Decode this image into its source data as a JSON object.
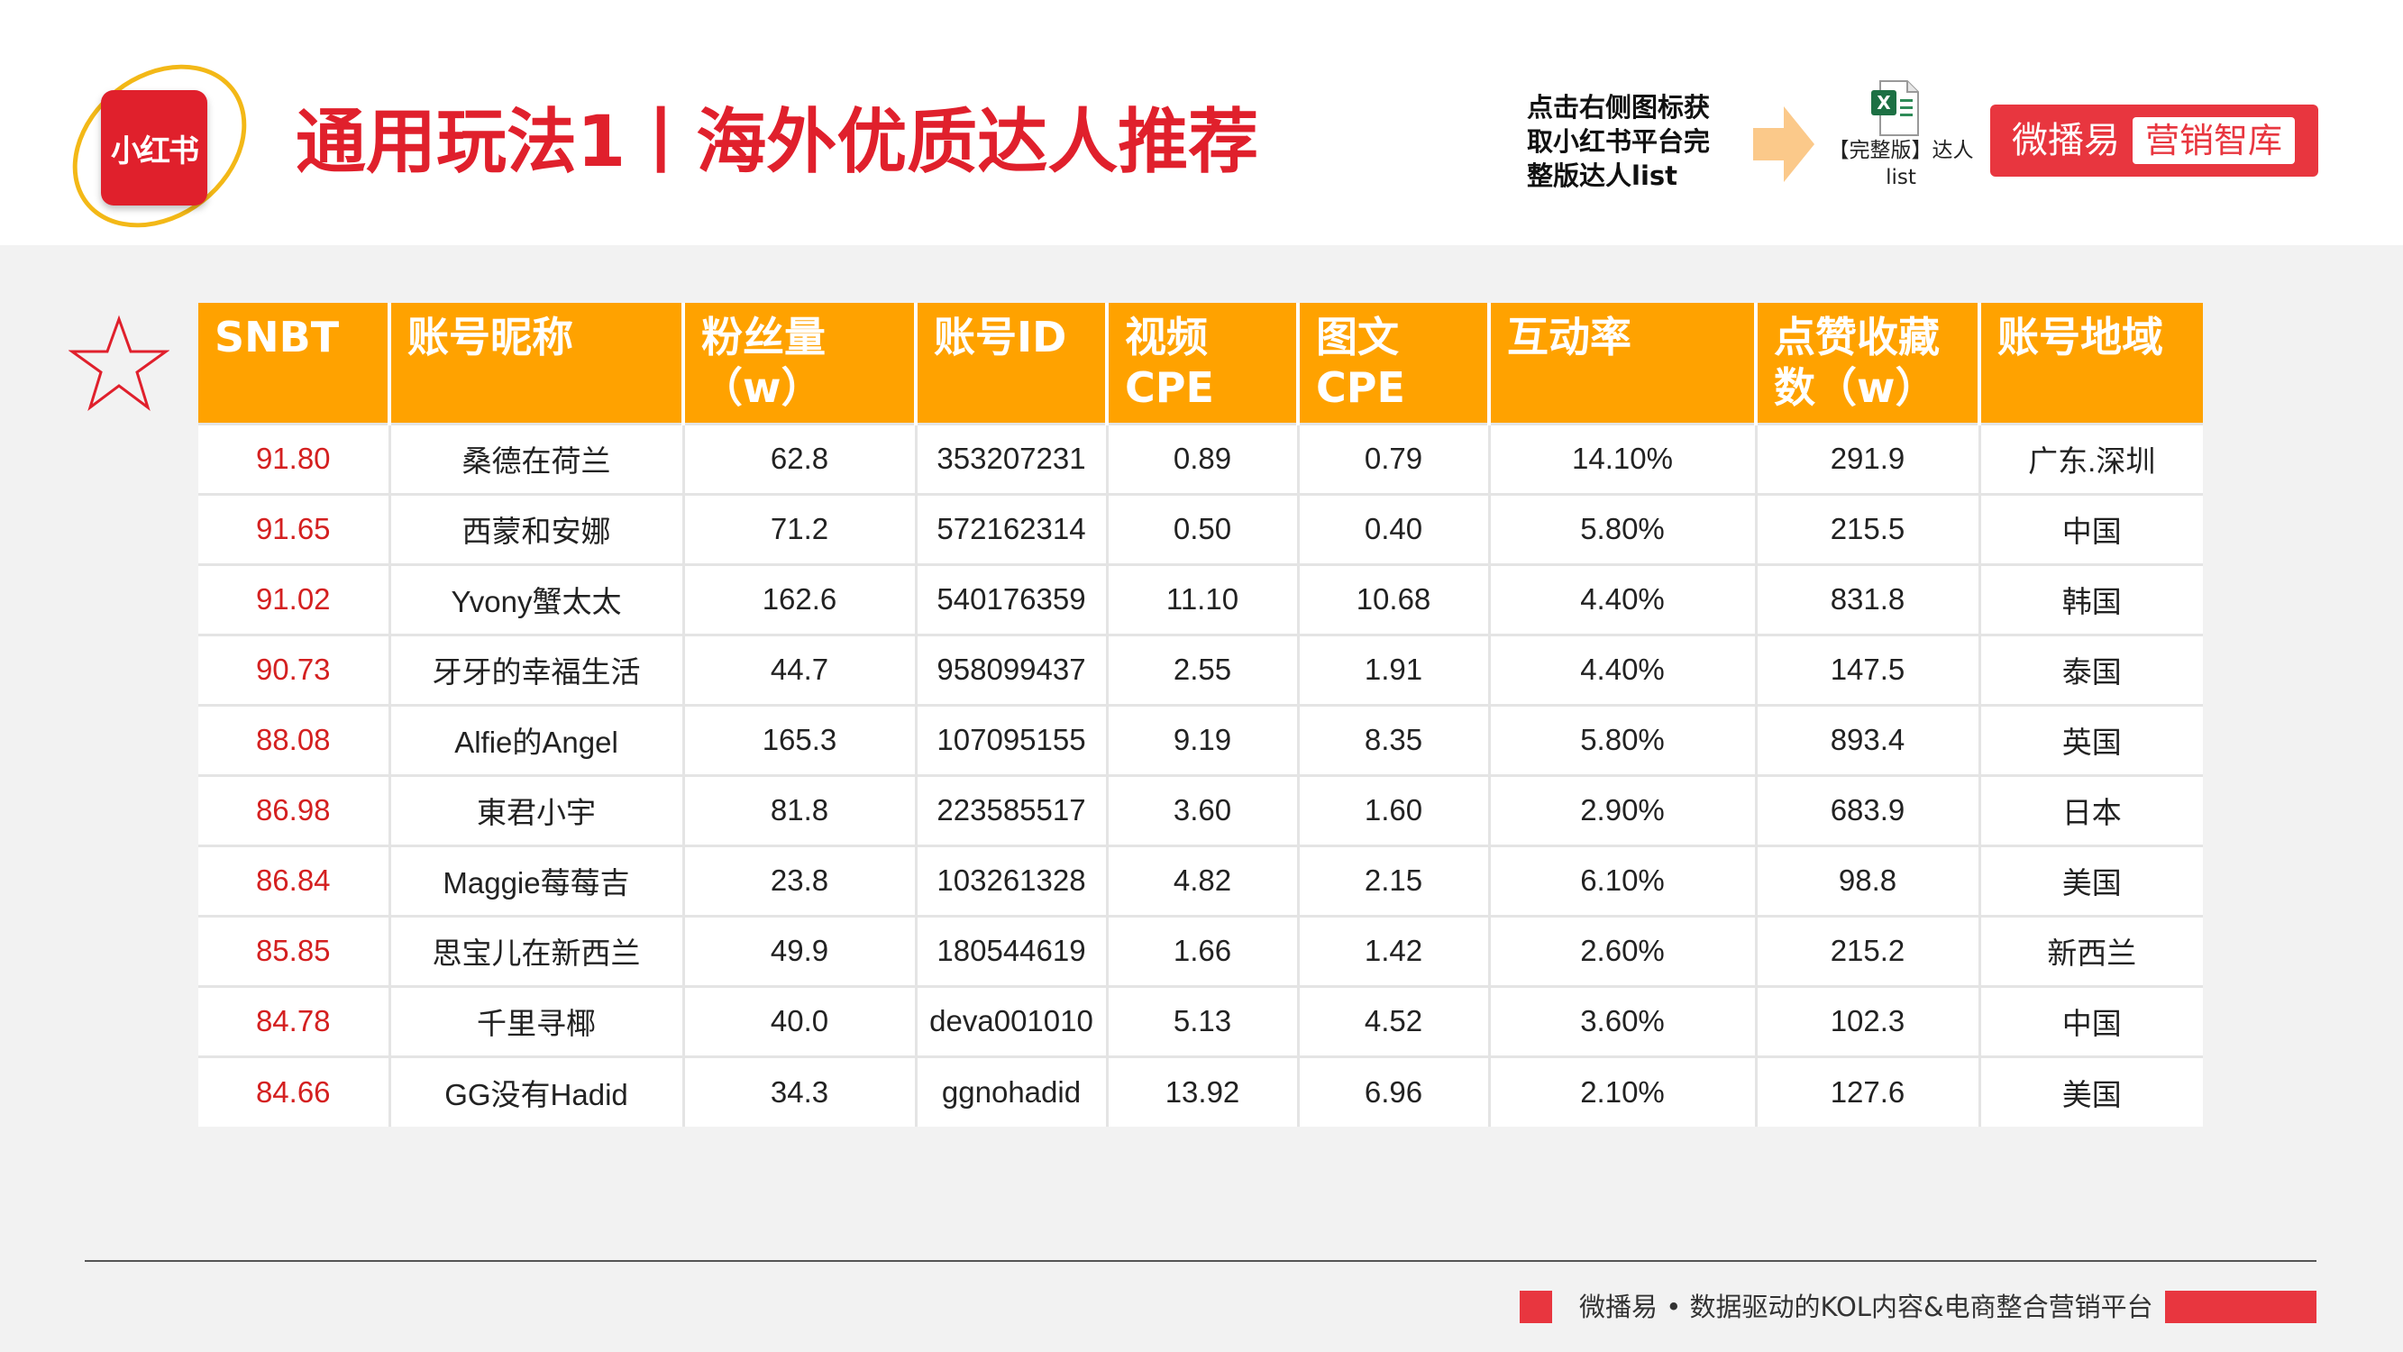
{
  "header": {
    "logo_text": "小红书",
    "title": "通用玩法1丨海外优质达人推荐",
    "hint": "点击右侧图标获取小红书平台完整版达人list",
    "excel_label": "【完整版】达人list",
    "brand_name": "微播易",
    "brand_tag": "营销智库"
  },
  "table": {
    "columns": [
      "SNBT",
      "账号昵称",
      "粉丝量（w）",
      "账号ID",
      "视频CPE",
      "图文CPE",
      "互动率",
      "点赞收藏数（w）",
      "账号地域"
    ],
    "rows": [
      [
        "91.80",
        "桑德在荷兰",
        "62.8",
        "353207231",
        "0.89",
        "0.79",
        "14.10%",
        "291.9",
        "广东.深圳"
      ],
      [
        "91.65",
        "西蒙和安娜",
        "71.2",
        "572162314",
        "0.50",
        "0.40",
        "5.80%",
        "215.5",
        "中国"
      ],
      [
        "91.02",
        "Yvony蟹太太",
        "162.6",
        "540176359",
        "11.10",
        "10.68",
        "4.40%",
        "831.8",
        "韩国"
      ],
      [
        "90.73",
        "牙牙的幸福生活",
        "44.7",
        "958099437",
        "2.55",
        "1.91",
        "4.40%",
        "147.5",
        "泰国"
      ],
      [
        "88.08",
        "Alfie的Angel",
        "165.3",
        "107095155",
        "9.19",
        "8.35",
        "5.80%",
        "893.4",
        "英国"
      ],
      [
        "86.98",
        "東君小宇",
        "81.8",
        "223585517",
        "3.60",
        "1.60",
        "2.90%",
        "683.9",
        "日本"
      ],
      [
        "86.84",
        "Maggie莓莓吉",
        "23.8",
        "103261328",
        "4.82",
        "2.15",
        "6.10%",
        "98.8",
        "美国"
      ],
      [
        "85.85",
        "思宝儿在新西兰",
        "49.9",
        "180544619",
        "1.66",
        "1.42",
        "2.60%",
        "215.2",
        "新西兰"
      ],
      [
        "84.78",
        "千里寻椰",
        "40.0",
        "deva001010",
        "5.13",
        "4.52",
        "3.60%",
        "102.3",
        "中国"
      ],
      [
        "84.66",
        "GG没有Hadid",
        "34.3",
        "ggnohadid",
        "13.92",
        "6.96",
        "2.10%",
        "127.6",
        "美国"
      ]
    ]
  },
  "footer": {
    "text": "微播易 • 数据驱动的KOL内容&电商整合营销平台"
  },
  "colors": {
    "brand_red": "#e0202c",
    "header_orange": "#ffa200",
    "score_red": "#d42020"
  },
  "icons": [
    "xiaohongshu-logo",
    "arrow-right-icon",
    "excel-file-icon",
    "star-icon"
  ]
}
